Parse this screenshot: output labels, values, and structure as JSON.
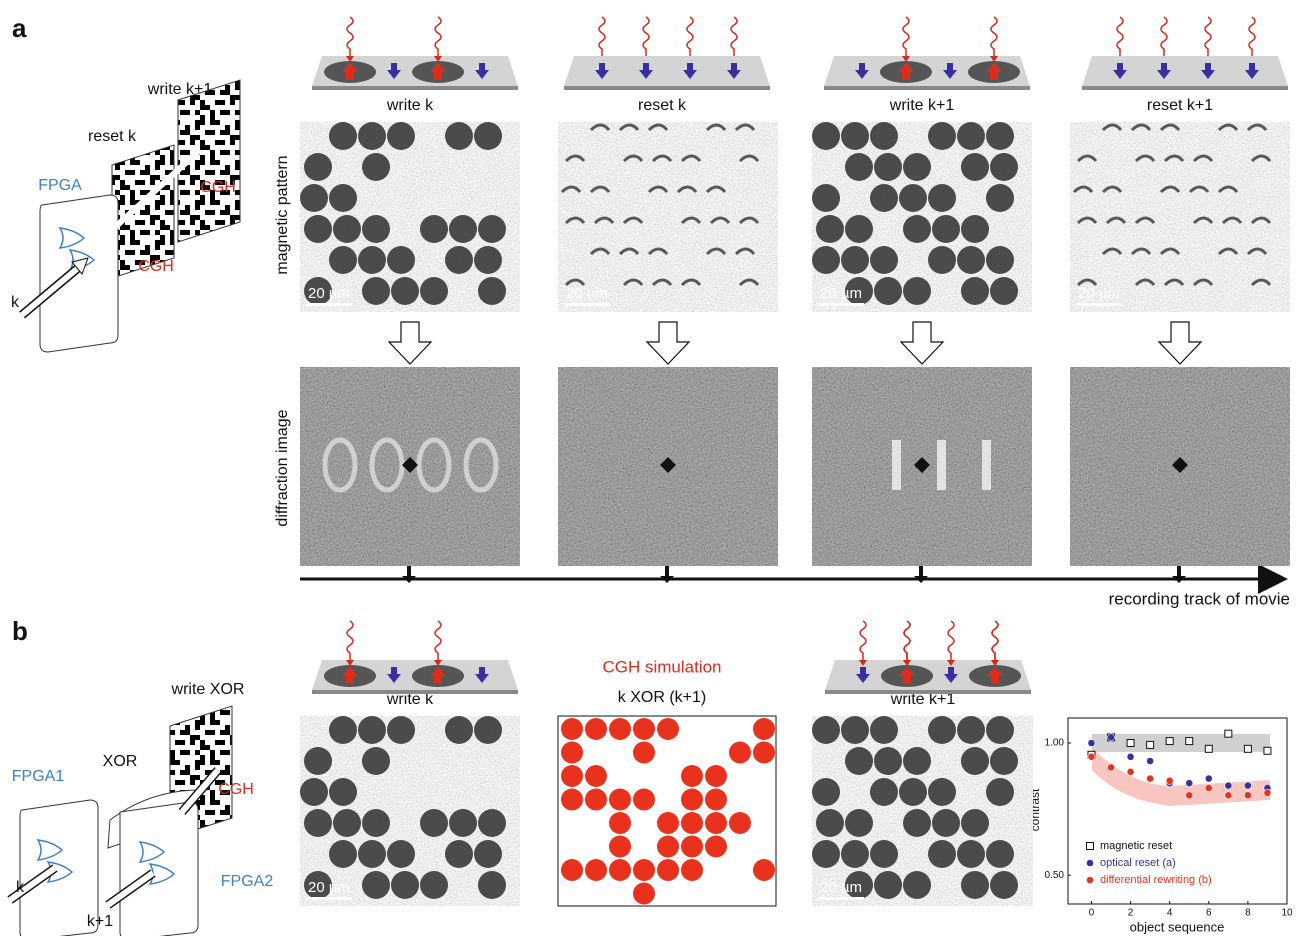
{
  "panel_a": {
    "label": "a",
    "diagram": {
      "fpga": "FPGA",
      "reset": "reset k",
      "write": "write k+1",
      "cgh_1": "CGH",
      "cgh_2": "CGH",
      "input": "k"
    },
    "columns": [
      "write k",
      "reset k",
      "write k+1",
      "reset k+1"
    ],
    "row_labels": [
      "magnetic pattern",
      "diffraction image"
    ],
    "scale_bars": [
      "20 µm",
      "20 µm",
      "20 µm",
      "20 µm"
    ],
    "track_label": "recording track of movie"
  },
  "panel_b": {
    "label": "b",
    "diagram": {
      "write": "write XOR",
      "gate": "XOR",
      "fpga_1": "FPGA1",
      "fpga_2": "FPGA2",
      "cgh": "CGH",
      "input_1": "k",
      "input_2": "k+1"
    },
    "columns": [
      "write k",
      "write k+1"
    ],
    "simulation_title": "CGH simulation",
    "simulation_subtitle": "k XOR (k+1)",
    "scale_bars": [
      "20 µm",
      "20 µm"
    ]
  },
  "chart_data": {
    "type": "scatter",
    "xlabel": "object sequence",
    "ylabel": "contrast",
    "log_y": true,
    "xlim": [
      -1.2,
      10
    ],
    "xticks": [
      0,
      2,
      4,
      6,
      8,
      10
    ],
    "ylim": [
      0.43,
      1.14
    ],
    "yticks": [
      {
        "value": 1,
        "label": "1.00"
      },
      {
        "value": 0.5,
        "label": "0.50"
      }
    ],
    "x": [
      0,
      1,
      2,
      3,
      4,
      5,
      6,
      7,
      8,
      9
    ],
    "series": [
      {
        "name": "magnetic reset",
        "color": "#111111",
        "marker": "square",
        "values": [
          0.94,
          1.03,
          1.0,
          0.99,
          1.01,
          1.01,
          0.97,
          1.05,
          0.97,
          0.96
        ]
      },
      {
        "name": "optical reset (a)",
        "color": "#3a2f9e",
        "marker": "circle",
        "values": [
          1.0,
          1.03,
          0.93,
          0.91,
          0.81,
          0.81,
          0.83,
          0.8,
          0.8,
          0.79
        ]
      },
      {
        "name": "differential rewriting (b)",
        "color": "#e8321e",
        "marker": "circle",
        "values": [
          0.93,
          0.88,
          0.86,
          0.83,
          0.82,
          0.76,
          0.79,
          0.76,
          0.76,
          0.77
        ]
      }
    ]
  }
}
